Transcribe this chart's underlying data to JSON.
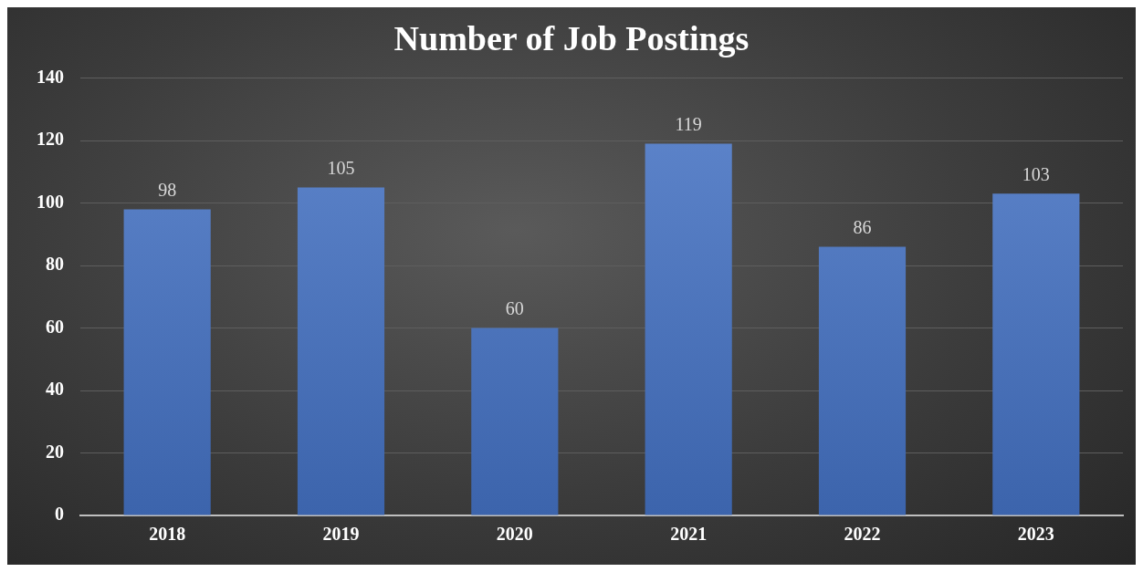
{
  "chart_data": {
    "type": "bar",
    "title": "Number of Job Postings",
    "categories": [
      "2018",
      "2019",
      "2020",
      "2021",
      "2022",
      "2023"
    ],
    "values": [
      98,
      105,
      60,
      119,
      86,
      103
    ],
    "color": "#4472c4",
    "ylim": [
      0,
      140
    ],
    "yticks": [
      0,
      20,
      40,
      60,
      80,
      100,
      120,
      140
    ],
    "grid": "y",
    "data_labels": true,
    "legend": false
  }
}
